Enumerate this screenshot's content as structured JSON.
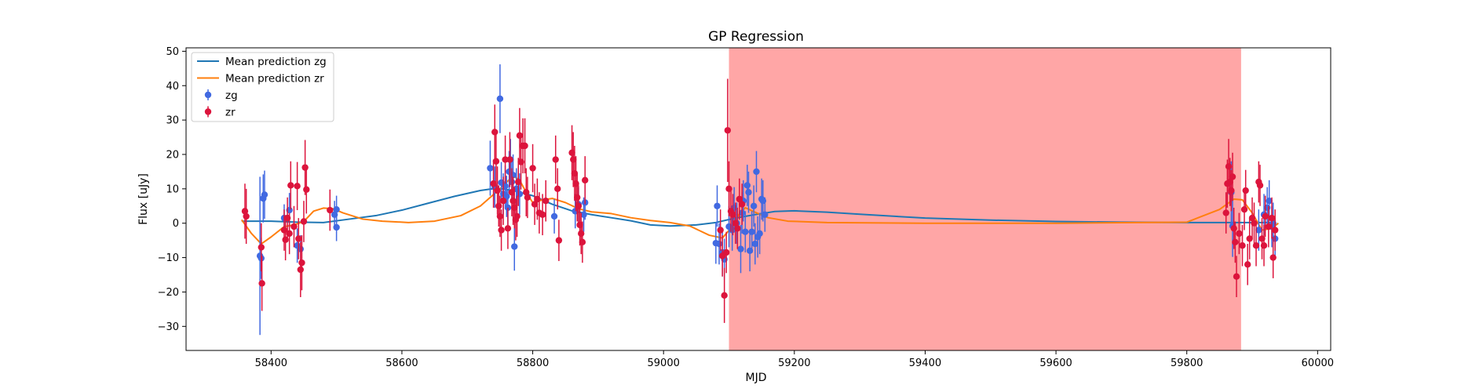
{
  "chart_data": {
    "type": "scatter",
    "title": "GP Regression",
    "xlabel": "MJD",
    "ylabel": "Flux [uJy]",
    "xlim": [
      58270,
      60020
    ],
    "ylim": [
      -37,
      51
    ],
    "xticks": [
      58400,
      58600,
      58800,
      59000,
      59200,
      59400,
      59600,
      59800,
      60000
    ],
    "yticks": [
      -30,
      -20,
      -10,
      0,
      10,
      20,
      30,
      40,
      50
    ],
    "grid": false,
    "legend_position": "top-left",
    "shaded_span": {
      "x0": 59100,
      "x1": 59883,
      "color": "#ff0000",
      "alpha": 0.35
    },
    "series": [
      {
        "name": "Mean prediction zg",
        "kind": "line",
        "color": "#1f77b4",
        "points": [
          [
            58355,
            0.6
          ],
          [
            58400,
            0.6
          ],
          [
            58440,
            0.3
          ],
          [
            58480,
            0.2
          ],
          [
            58520,
            1.2
          ],
          [
            58560,
            2.2
          ],
          [
            58600,
            3.8
          ],
          [
            58640,
            5.8
          ],
          [
            58680,
            7.8
          ],
          [
            58720,
            9.5
          ],
          [
            58745,
            10.2
          ],
          [
            58770,
            9.5
          ],
          [
            58800,
            8
          ],
          [
            58830,
            5.5
          ],
          [
            58860,
            3.6
          ],
          [
            58890,
            2.5
          ],
          [
            58920,
            1.6
          ],
          [
            58950,
            0.7
          ],
          [
            58980,
            -0.5
          ],
          [
            59010,
            -0.8
          ],
          [
            59050,
            -0.5
          ],
          [
            59080,
            0.2
          ],
          [
            59110,
            1.5
          ],
          [
            59140,
            2.5
          ],
          [
            59170,
            3.4
          ],
          [
            59200,
            3.6
          ],
          [
            59250,
            3.2
          ],
          [
            59300,
            2.6
          ],
          [
            59400,
            1.5
          ],
          [
            59500,
            0.9
          ],
          [
            59600,
            0.5
          ],
          [
            59700,
            0.3
          ],
          [
            59800,
            0.2
          ],
          [
            59870,
            0.2
          ],
          [
            59935,
            0.2
          ]
        ]
      },
      {
        "name": "Mean prediction zr",
        "kind": "line",
        "color": "#ff7f0e",
        "points": [
          [
            58355,
            1
          ],
          [
            58370,
            -3
          ],
          [
            58385,
            -6
          ],
          [
            58400,
            -4
          ],
          [
            58420,
            -1
          ],
          [
            58435,
            -0.5
          ],
          [
            58450,
            0.5
          ],
          [
            58465,
            3.5
          ],
          [
            58480,
            4.4
          ],
          [
            58495,
            4.2
          ],
          [
            58510,
            3
          ],
          [
            58540,
            1.2
          ],
          [
            58570,
            0.6
          ],
          [
            58610,
            0.2
          ],
          [
            58650,
            0.6
          ],
          [
            58690,
            2.2
          ],
          [
            58720,
            5
          ],
          [
            58750,
            10
          ],
          [
            58770,
            13.8
          ],
          [
            58780,
            12.5
          ],
          [
            58790,
            9
          ],
          [
            58800,
            6
          ],
          [
            58815,
            6.8
          ],
          [
            58830,
            7.2
          ],
          [
            58850,
            6
          ],
          [
            58870,
            4.2
          ],
          [
            58890,
            3.3
          ],
          [
            58920,
            2.8
          ],
          [
            58950,
            1.6
          ],
          [
            58980,
            0.8
          ],
          [
            59010,
            0.2
          ],
          [
            59040,
            -0.8
          ],
          [
            59070,
            -3.5
          ],
          [
            59090,
            -4.3
          ],
          [
            59105,
            -1
          ],
          [
            59115,
            2.5
          ],
          [
            59125,
            4.5
          ],
          [
            59140,
            3.2
          ],
          [
            59160,
            1.6
          ],
          [
            59190,
            0.6
          ],
          [
            59250,
            0.2
          ],
          [
            59400,
            0
          ],
          [
            59600,
            0
          ],
          [
            59800,
            0.3
          ],
          [
            59850,
            4
          ],
          [
            59872,
            7
          ],
          [
            59885,
            6.8
          ],
          [
            59900,
            3
          ],
          [
            59915,
            -2
          ],
          [
            59930,
            -1.5
          ],
          [
            59940,
            0
          ]
        ]
      },
      {
        "name": "zg",
        "kind": "errorbar",
        "color": "#4169e1",
        "points": [
          [
            58383,
            -9.5,
            23
          ],
          [
            58385,
            -10.2,
            6
          ],
          [
            58388,
            7.2,
            7
          ],
          [
            58390,
            8.3,
            7
          ],
          [
            58420,
            1.5,
            4
          ],
          [
            58428,
            3.8,
            5
          ],
          [
            58440,
            -6.5,
            5
          ],
          [
            58445,
            -7.5,
            4
          ],
          [
            58497,
            2.5,
            4
          ],
          [
            58500,
            -1.2,
            4
          ],
          [
            58500,
            4,
            4
          ],
          [
            58735,
            16,
            8
          ],
          [
            58742,
            10.5,
            6
          ],
          [
            58750,
            36.2,
            10
          ],
          [
            58752,
            11.8,
            6
          ],
          [
            58755,
            8.5,
            6
          ],
          [
            58758,
            10.8,
            6
          ],
          [
            58760,
            7.8,
            6
          ],
          [
            58762,
            4.5,
            5
          ],
          [
            58764,
            15,
            6
          ],
          [
            58766,
            18.5,
            6
          ],
          [
            58768,
            12,
            6
          ],
          [
            58770,
            14,
            6
          ],
          [
            58772,
            -6.8,
            7
          ],
          [
            58775,
            10,
            6
          ],
          [
            58780,
            8.5,
            6
          ],
          [
            58833,
            2,
            5
          ],
          [
            58865,
            3.5,
            5
          ],
          [
            58870,
            5.5,
            5
          ],
          [
            58878,
            2.5,
            5
          ],
          [
            58880,
            6,
            5
          ],
          [
            59080,
            -5.8,
            6
          ],
          [
            59082,
            5,
            6
          ],
          [
            59085,
            -6,
            6
          ],
          [
            59090,
            -8.5,
            7
          ],
          [
            59093,
            -10.5,
            6
          ],
          [
            59100,
            -1,
            6
          ],
          [
            59105,
            -2,
            6
          ],
          [
            59108,
            4.5,
            6
          ],
          [
            59112,
            0,
            6
          ],
          [
            59118,
            -7.5,
            7
          ],
          [
            59120,
            3,
            6
          ],
          [
            59122,
            6.5,
            6
          ],
          [
            59125,
            -2.5,
            6
          ],
          [
            59128,
            11,
            6
          ],
          [
            59130,
            9,
            6
          ],
          [
            59132,
            -8,
            6
          ],
          [
            59135,
            -2.5,
            6
          ],
          [
            59138,
            5,
            6
          ],
          [
            59140,
            -6,
            6
          ],
          [
            59142,
            15,
            6
          ],
          [
            59144,
            -4,
            6
          ],
          [
            59147,
            -3,
            6
          ],
          [
            59150,
            7,
            6
          ],
          [
            59152,
            6.5,
            6
          ],
          [
            59155,
            2.5,
            5
          ],
          [
            59868,
            9,
            9
          ],
          [
            59870,
            -0.8,
            9
          ],
          [
            59910,
            -2,
            6
          ],
          [
            59918,
            2.5,
            6
          ],
          [
            59923,
            4.5,
            6
          ],
          [
            59926,
            6.5,
            6
          ],
          [
            59930,
            -1,
            6
          ],
          [
            59932,
            0,
            6
          ],
          [
            59935,
            -4.5,
            6
          ]
        ]
      },
      {
        "name": "zr",
        "kind": "errorbar",
        "color": "#dc143c",
        "points": [
          [
            58360,
            3.5,
            8
          ],
          [
            58362,
            2,
            8
          ],
          [
            58385,
            -7,
            7
          ],
          [
            58386,
            -17.5,
            8
          ],
          [
            58420,
            -2,
            6
          ],
          [
            58422,
            -4.8,
            6
          ],
          [
            58425,
            1.5,
            6
          ],
          [
            58428,
            -3,
            6
          ],
          [
            58430,
            11,
            7
          ],
          [
            58435,
            -1,
            6
          ],
          [
            58440,
            10.8,
            7
          ],
          [
            58442,
            -4.5,
            6
          ],
          [
            58445,
            -13.5,
            8
          ],
          [
            58447,
            -11.5,
            8
          ],
          [
            58450,
            0.5,
            6
          ],
          [
            58452,
            16.2,
            8
          ],
          [
            58454,
            9.8,
            7
          ],
          [
            58490,
            3.8,
            6
          ],
          [
            58740,
            11.5,
            7
          ],
          [
            58742,
            26.5,
            8
          ],
          [
            58744,
            18,
            8
          ],
          [
            58746,
            9.5,
            7
          ],
          [
            58748,
            5,
            6
          ],
          [
            58750,
            2,
            6
          ],
          [
            58752,
            -2,
            6
          ],
          [
            58755,
            6.5,
            7
          ],
          [
            58758,
            18.5,
            7
          ],
          [
            58762,
            -1.5,
            6
          ],
          [
            58765,
            18.5,
            8
          ],
          [
            58768,
            9,
            7
          ],
          [
            58770,
            6.5,
            7
          ],
          [
            58772,
            4.5,
            6
          ],
          [
            58774,
            1,
            6
          ],
          [
            58776,
            2,
            6
          ],
          [
            58778,
            12,
            7
          ],
          [
            58780,
            25.5,
            8
          ],
          [
            58782,
            17.8,
            8
          ],
          [
            58785,
            22.5,
            8
          ],
          [
            58788,
            22.5,
            8
          ],
          [
            58790,
            9,
            7
          ],
          [
            58792,
            7.5,
            6
          ],
          [
            58800,
            16,
            7
          ],
          [
            58803,
            5.5,
            6
          ],
          [
            58807,
            7,
            6
          ],
          [
            58810,
            3,
            6
          ],
          [
            58815,
            2.5,
            6
          ],
          [
            58820,
            6.5,
            6
          ],
          [
            58835,
            18.5,
            7
          ],
          [
            58838,
            10,
            6
          ],
          [
            58840,
            -5,
            6
          ],
          [
            58860,
            20.5,
            8
          ],
          [
            58862,
            18.5,
            8
          ],
          [
            58864,
            14.5,
            8
          ],
          [
            58866,
            11.5,
            8
          ],
          [
            58868,
            7.5,
            7
          ],
          [
            58870,
            5,
            6
          ],
          [
            58872,
            -0.5,
            6
          ],
          [
            58874,
            -3,
            6
          ],
          [
            58876,
            -5.5,
            6
          ],
          [
            58880,
            12.5,
            7
          ],
          [
            59087,
            -2,
            6
          ],
          [
            59090,
            -9.5,
            6
          ],
          [
            59093,
            -21,
            8
          ],
          [
            59096,
            -8.5,
            6
          ],
          [
            59098,
            27,
            15
          ],
          [
            59100,
            10,
            8
          ],
          [
            59103,
            3.5,
            6
          ],
          [
            59106,
            2.5,
            6
          ],
          [
            59110,
            0,
            6
          ],
          [
            59113,
            -1.5,
            6
          ],
          [
            59116,
            7,
            6
          ],
          [
            59120,
            5.5,
            6
          ],
          [
            59860,
            3,
            6
          ],
          [
            59862,
            11.5,
            7
          ],
          [
            59864,
            16.5,
            8
          ],
          [
            59866,
            12,
            7
          ],
          [
            59868,
            9.5,
            6
          ],
          [
            59870,
            13.5,
            7
          ],
          [
            59872,
            -1.5,
            6
          ],
          [
            59874,
            -5.5,
            6
          ],
          [
            59876,
            -15.5,
            6
          ],
          [
            59880,
            -3,
            6
          ],
          [
            59885,
            -6.5,
            6
          ],
          [
            59888,
            4,
            6
          ],
          [
            59890,
            9.5,
            6
          ],
          [
            59893,
            -12,
            6
          ],
          [
            59896,
            -4.5,
            6
          ],
          [
            59900,
            1.5,
            6
          ],
          [
            59903,
            0,
            6
          ],
          [
            59906,
            -6.5,
            6
          ],
          [
            59910,
            12,
            6
          ],
          [
            59912,
            11,
            6
          ],
          [
            59915,
            -4.5,
            6
          ],
          [
            59918,
            -6.5,
            6
          ],
          [
            59920,
            2,
            6
          ],
          [
            59925,
            -1,
            6
          ],
          [
            59930,
            1.5,
            6
          ],
          [
            59932,
            -10,
            6
          ],
          [
            59935,
            -2,
            6
          ]
        ]
      }
    ]
  }
}
